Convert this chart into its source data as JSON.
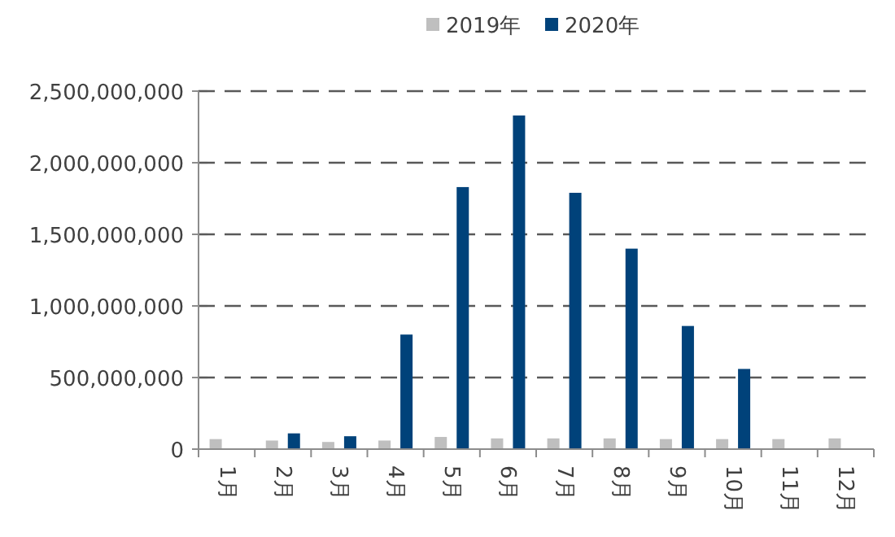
{
  "chart_data": {
    "type": "bar",
    "categories": [
      "1月",
      "2月",
      "3月",
      "4月",
      "5月",
      "6月",
      "7月",
      "8月",
      "9月",
      "10月",
      "11月",
      "12月"
    ],
    "series": [
      {
        "name": "2019年",
        "color": "#bfbfbf",
        "values": [
          70000000,
          60000000,
          50000000,
          60000000,
          85000000,
          75000000,
          75000000,
          75000000,
          70000000,
          70000000,
          70000000,
          75000000
        ]
      },
      {
        "name": "2020年",
        "color": "#00427a",
        "values": [
          null,
          110000000,
          90000000,
          800000000,
          1830000000,
          2330000000,
          1790000000,
          1400000000,
          860000000,
          560000000,
          null,
          null
        ]
      }
    ],
    "ylim": [
      0,
      2500000000
    ],
    "yticks": [
      {
        "value": 0,
        "label": "0"
      },
      {
        "value": 500000000,
        "label": "500,000,000"
      },
      {
        "value": 1000000000,
        "label": "1,000,000,000"
      },
      {
        "value": 1500000000,
        "label": "1,500,000,000"
      },
      {
        "value": 2000000000,
        "label": "2,000,000,000"
      },
      {
        "value": 2500000000,
        "label": "2,500,000,000"
      }
    ],
    "grid": "y",
    "legend": "top"
  }
}
